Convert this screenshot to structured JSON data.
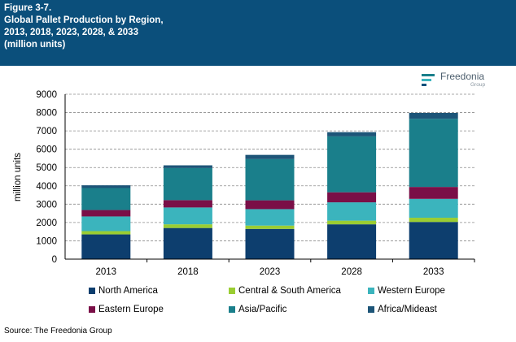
{
  "header": {
    "lines": [
      "Figure 3-7.",
      "Global Pallet Production by Region,",
      "2013, 2018, 2023, 2028, & 2033",
      "(million units)"
    ]
  },
  "logo": {
    "name": "Freedonia",
    "group": "Group",
    "icon": "freedonia-logo-icon"
  },
  "source": "Source: The Freedonia Group",
  "colors": {
    "header_bg": "#0b4f7b",
    "north_america": "#0d3e6e",
    "central_south_america": "#9acd32",
    "western_europe": "#3bb4bd",
    "eastern_europe": "#7a0f47",
    "asia_pacific": "#1a7f8b",
    "africa_mideast": "#1d5578"
  },
  "chart_data": {
    "type": "bar",
    "stacked": true,
    "title": "Global Pallet Production by Region, 2013, 2018, 2023, 2028, & 2033",
    "xlabel": "",
    "ylabel": "million units",
    "ylim": [
      0,
      9000
    ],
    "yticks": [
      0,
      1000,
      2000,
      3000,
      4000,
      5000,
      6000,
      7000,
      8000,
      9000
    ],
    "ytick_labels": [
      "0",
      "1000",
      "2000",
      "3000",
      "4000",
      "5000",
      "6000",
      "7000",
      "8000",
      "9000"
    ],
    "grid": "horizontal dashed",
    "legend_position": "bottom",
    "categories": [
      "2013",
      "2018",
      "2023",
      "2028",
      "2033"
    ],
    "series": [
      {
        "name": "North America",
        "color": "#0d3e6e",
        "values": [
          1350,
          1700,
          1650,
          1900,
          2030
        ]
      },
      {
        "name": "Central & South America",
        "color": "#9acd32",
        "values": [
          180,
          200,
          180,
          200,
          230
        ]
      },
      {
        "name": "Western Europe",
        "color": "#3bb4bd",
        "values": [
          800,
          920,
          900,
          1000,
          1030
        ]
      },
      {
        "name": "Eastern Europe",
        "color": "#7a0f47",
        "values": [
          350,
          400,
          480,
          550,
          650
        ]
      },
      {
        "name": "Asia/Pacific",
        "color": "#1a7f8b",
        "values": [
          1200,
          1750,
          2250,
          3050,
          3720
        ]
      },
      {
        "name": "Africa/Mideast",
        "color": "#1d5578",
        "values": [
          150,
          150,
          230,
          230,
          320
        ]
      }
    ]
  }
}
